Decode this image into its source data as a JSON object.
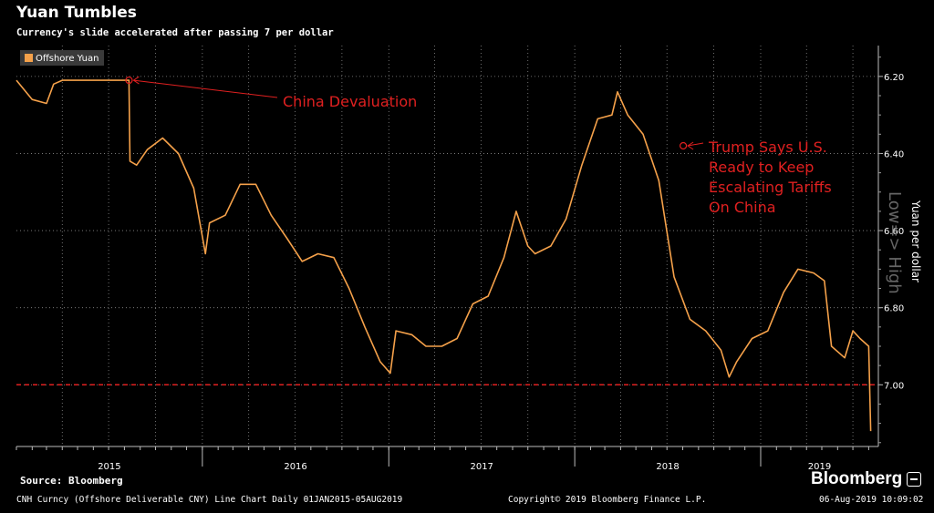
{
  "header": {
    "title": "Yuan Tumbles",
    "subtitle": "Currency's slide accelerated after passing 7 per dollar"
  },
  "footer": {
    "source": "Source: Bloomberg",
    "description": "CNH Curncy (Offshore Deliverable CNY) Line Chart  Daily 01JAN2015-05AUG2019",
    "copyright": "Copyright© 2019 Bloomberg Finance L.P.",
    "timestamp": "06-Aug-2019 10:09:02",
    "brand": "Bloomberg"
  },
  "colors": {
    "background": "#000000",
    "line": "#f5a14a",
    "annotation": "#e02020",
    "threshold": "#e02020",
    "grid": "#8a8a8a"
  },
  "chart_data": {
    "type": "line",
    "series": [
      {
        "name": "Offshore Yuan",
        "x": [
          "2015-01-01",
          "2015-02-01",
          "2015-03-01",
          "2015-03-15",
          "2015-04-01",
          "2015-05-01",
          "2015-06-01",
          "2015-07-01",
          "2015-08-10",
          "2015-08-11",
          "2015-08-12",
          "2015-08-25",
          "2015-09-15",
          "2015-10-15",
          "2015-11-15",
          "2015-12-15",
          "2016-01-07",
          "2016-01-15",
          "2016-02-15",
          "2016-03-15",
          "2016-04-15",
          "2016-05-15",
          "2016-06-15",
          "2016-07-15",
          "2016-08-15",
          "2016-09-15",
          "2016-10-15",
          "2016-11-15",
          "2016-12-15",
          "2017-01-04",
          "2017-01-15",
          "2017-02-15",
          "2017-03-15",
          "2017-04-15",
          "2017-05-15",
          "2017-06-15",
          "2017-07-15",
          "2017-08-15",
          "2017-09-08",
          "2017-10-01",
          "2017-10-15",
          "2017-11-15",
          "2017-12-15",
          "2018-01-15",
          "2018-02-15",
          "2018-03-15",
          "2018-03-26",
          "2018-04-15",
          "2018-05-15",
          "2018-06-15",
          "2018-07-15",
          "2018-08-15",
          "2018-09-15",
          "2018-10-15",
          "2018-10-31",
          "2018-11-15",
          "2018-12-15",
          "2019-01-15",
          "2019-02-15",
          "2019-03-15",
          "2019-04-15",
          "2019-05-06",
          "2019-05-20",
          "2019-06-15",
          "2019-07-01",
          "2019-07-15",
          "2019-08-01",
          "2019-08-05"
        ],
        "values": [
          6.21,
          6.26,
          6.27,
          6.22,
          6.21,
          6.21,
          6.21,
          6.21,
          6.21,
          6.33,
          6.42,
          6.43,
          6.39,
          6.36,
          6.4,
          6.49,
          6.66,
          6.58,
          6.56,
          6.48,
          6.48,
          6.56,
          6.62,
          6.68,
          6.66,
          6.67,
          6.75,
          6.85,
          6.94,
          6.97,
          6.86,
          6.87,
          6.9,
          6.9,
          6.88,
          6.79,
          6.77,
          6.67,
          6.55,
          6.64,
          6.66,
          6.64,
          6.57,
          6.43,
          6.31,
          6.3,
          6.24,
          6.3,
          6.35,
          6.47,
          6.72,
          6.83,
          6.86,
          6.91,
          6.98,
          6.94,
          6.88,
          6.86,
          6.76,
          6.7,
          6.71,
          6.73,
          6.9,
          6.93,
          6.86,
          6.88,
          6.9,
          7.12
        ]
      }
    ],
    "x_tick_labels": [
      "2015",
      "2016",
      "2017",
      "2018",
      "2019"
    ],
    "y_ticks": [
      6.2,
      6.4,
      6.6,
      6.8,
      7.0
    ],
    "y_tick_labels": [
      "6.20",
      "6.40",
      "6.60",
      "6.80",
      "7.00"
    ],
    "ylim": [
      6.12,
      7.16
    ],
    "xlim": [
      "2015-01-01",
      "2019-08-20"
    ],
    "y_inverted": true,
    "ylabel": "Yuan per dollar",
    "ylabel2": "Low=> High",
    "legend_label": "Offshore Yuan",
    "legend_position": "top-left",
    "grid": true,
    "threshold": 7.0,
    "annotations": [
      {
        "date": "2015-08-10",
        "value": 6.21,
        "text": "China Devaluation"
      },
      {
        "date": "2018-08-02",
        "value": 6.38,
        "text": "Trump Says U.S.\nReady to Keep\nEscalating Tariffs\nOn China"
      }
    ]
  }
}
